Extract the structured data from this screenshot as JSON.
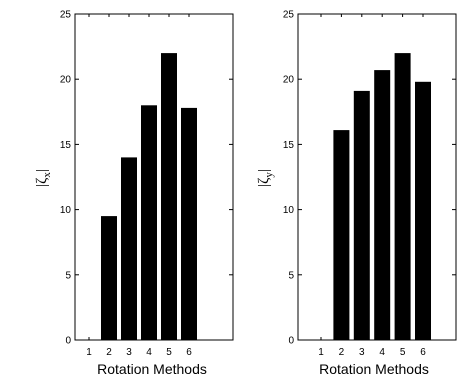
{
  "chart_data": [
    {
      "type": "bar",
      "categories": [
        "1",
        "2",
        "3",
        "4",
        "5",
        "6"
      ],
      "values": [
        0,
        9.5,
        14.0,
        18.0,
        22.0,
        17.8
      ],
      "xlabel": "Rotation Methods",
      "ylabel": {
        "base": "|ζ",
        "sub": "x",
        "close": "|"
      },
      "ylim": [
        0,
        25
      ],
      "yticks": [
        0,
        5,
        10,
        15,
        20,
        25
      ],
      "grid": false,
      "bar_color": "#000000"
    },
    {
      "type": "bar",
      "categories": [
        "1",
        "2",
        "3",
        "4",
        "5",
        "6"
      ],
      "values": [
        0,
        16.1,
        19.1,
        20.7,
        22.0,
        19.8
      ],
      "xlabel": "Rotation Methods",
      "ylabel": {
        "base": "|ζ",
        "sub": "y",
        "close": "|"
      },
      "ylim": [
        0,
        25
      ],
      "yticks": [
        0,
        5,
        10,
        15,
        20,
        25
      ],
      "grid": false,
      "bar_color": "#000000"
    }
  ]
}
